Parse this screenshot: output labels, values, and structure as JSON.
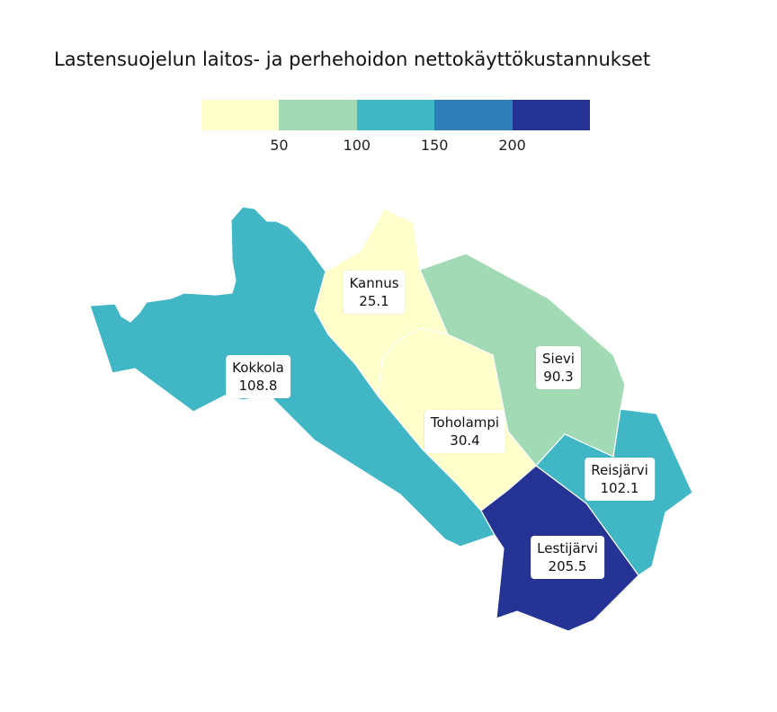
{
  "title": "Lastensuojelun laitos- ja perhehoidon nettokäyttökustannukset",
  "legend": {
    "colors": [
      "#ffffcc",
      "#a1dab4",
      "#41b6c4",
      "#2c7fb8",
      "#253494"
    ],
    "ticks": [
      "50",
      "100",
      "150",
      "200"
    ],
    "tick_values": [
      50,
      100,
      150,
      200
    ],
    "range": [
      0,
      250
    ]
  },
  "regions": [
    {
      "name": "Kokkola",
      "value": "108.8",
      "color": "#41b6c4"
    },
    {
      "name": "Kannus",
      "value": "25.1",
      "color": "#ffffcc"
    },
    {
      "name": "Sievi",
      "value": "90.3",
      "color": "#a1dab4"
    },
    {
      "name": "Toholampi",
      "value": "30.4",
      "color": "#ffffcc"
    },
    {
      "name": "Reisjärvi",
      "value": "102.1",
      "color": "#41b6c4"
    },
    {
      "name": "Lestijärvi",
      "value": "205.5",
      "color": "#253494"
    }
  ]
}
